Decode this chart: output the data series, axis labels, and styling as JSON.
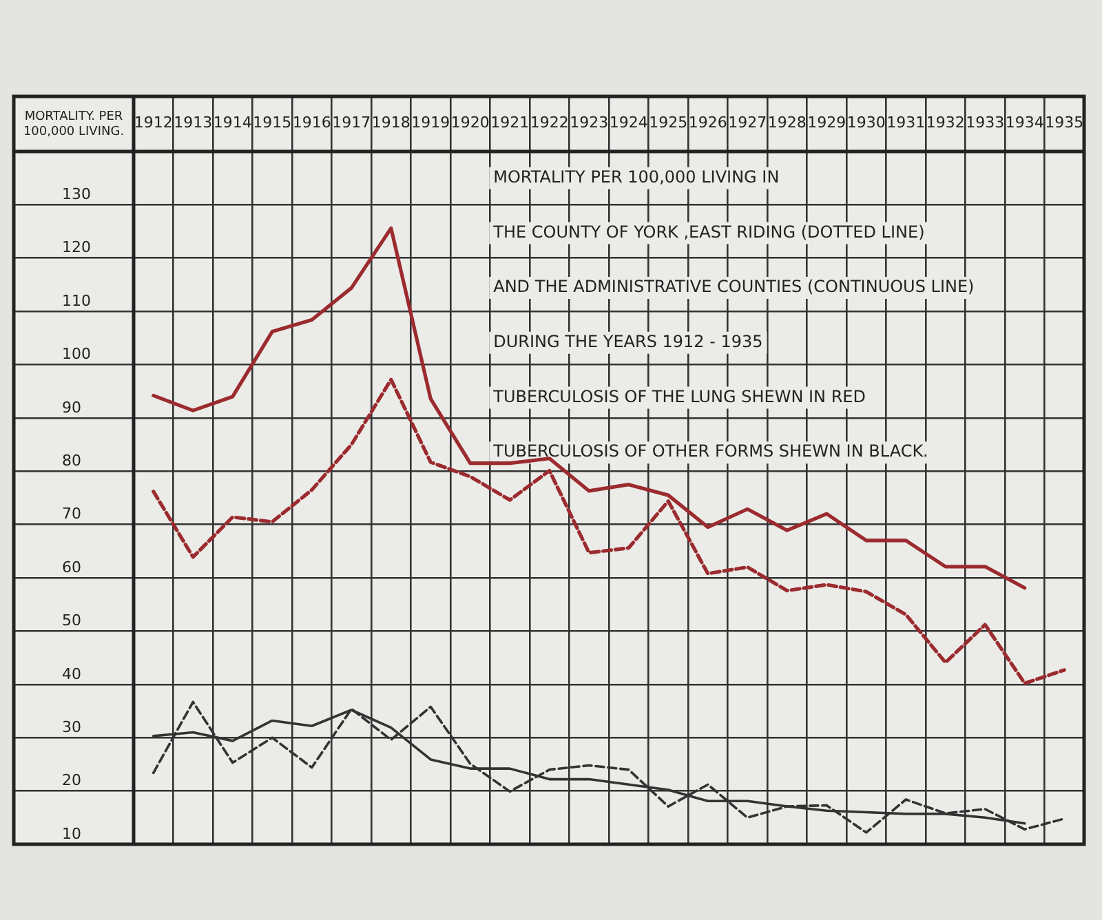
{
  "chart_data": {
    "type": "line",
    "ylabel": "MORTALITY. PER 100,000 LIVING.",
    "annotations": [
      "MORTALITY PER 100,000 LIVING IN",
      "THE COUNTY OF YORK ,EAST RIDING (DOTTED LINE)",
      "AND THE ADMINISTRATIVE COUNTIES (CONTINUOUS LINE)",
      "DURING THE YEARS 1912 - 1935",
      "TUBERCULOSIS OF THE LUNG SHEWN IN RED",
      "TUBERCULOSIS OF OTHER FORMS SHEWN IN BLACK."
    ],
    "categories": [
      "1912",
      "1913",
      "1914",
      "1915",
      "1916",
      "1917",
      "1918",
      "1919",
      "1920",
      "1921",
      "1922",
      "1923",
      "1924",
      "1925",
      "1926",
      "1927",
      "1928",
      "1929",
      "1930",
      "1931",
      "1932",
      "1933",
      "1934",
      "1935"
    ],
    "series": [
      {
        "color": "#9b2b2e",
        "line_style": "solid",
        "values": [
          94.2,
          91.4,
          94.0,
          106.2,
          108.4,
          114.4,
          125.6,
          93.6,
          81.5,
          81.5,
          82.4,
          76.3,
          77.5,
          75.5,
          69.5,
          72.9,
          68.9,
          72.0,
          67.0,
          67.0,
          62.1,
          62.1,
          58.1,
          null
        ]
      },
      {
        "color": "#9b2b2e",
        "line_style": "dashed",
        "values": [
          76.2,
          63.9,
          71.4,
          70.5,
          76.5,
          85,
          97.2,
          81.7,
          79,
          74.6,
          80.1,
          64.7,
          65.6,
          74.4,
          60.8,
          62.0,
          57.6,
          58.7,
          57.4,
          53.1,
          44.1,
          51.2,
          40.2,
          42.7
        ]
      },
      {
        "color": "#333333",
        "line_style": "solid",
        "values": [
          30.3,
          31.0,
          29.4,
          33.2,
          32.2,
          35.2,
          31.9,
          25.9,
          24.2,
          24.2,
          22.2,
          22.2,
          21.2,
          20.2,
          18.1,
          18.1,
          17.1,
          16.3,
          16.0,
          15.7,
          15.7,
          15.0,
          13.9,
          null
        ]
      },
      {
        "color": "#333333",
        "line_style": "dashed",
        "values": [
          23.4,
          36.7,
          25.3,
          30.0,
          24.4,
          35.4,
          29.6,
          35.8,
          25.1,
          19.9,
          24.0,
          24.8,
          24.0,
          17.1,
          21.2,
          15.0,
          17.1,
          17.3,
          12.2,
          18.4,
          15.8,
          16.6,
          12.8,
          14.8
        ]
      }
    ],
    "ylim": [
      10,
      140
    ],
    "yticks": [
      10,
      20,
      30,
      40,
      50,
      60,
      70,
      80,
      90,
      100,
      110,
      120,
      130,
      {
        "value": 140,
        "label": null
      }
    ],
    "grid": true,
    "legend": false,
    "marker": "none"
  }
}
